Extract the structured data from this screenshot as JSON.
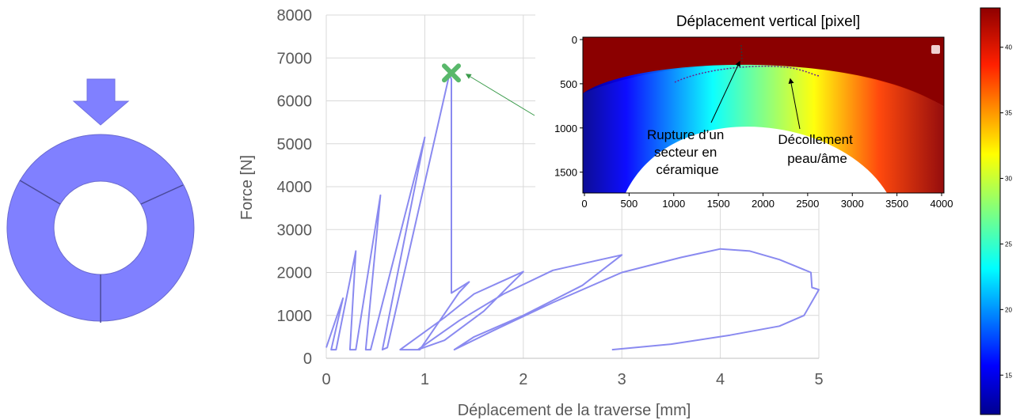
{
  "colors": {
    "ring": "#8080ff",
    "ring_border": "#5a5ab0",
    "curve": "#8a8af0",
    "grid": "#d9d9d9",
    "marker": "#59b86b",
    "arrow": "#3a9a4a"
  },
  "icons": {
    "load_arrow": "down-arrow-icon",
    "ring": "ring-section-icon",
    "failure_marker": "cross-marker-icon"
  },
  "chart_data": [
    {
      "type": "line",
      "title": "",
      "xlabel": "Déplacement de la traverse [mm]",
      "ylabel": "Force [N]",
      "xlim": [
        0,
        5
      ],
      "ylim": [
        0,
        8000
      ],
      "x_ticks": [
        0,
        1,
        2,
        3,
        4,
        5
      ],
      "y_ticks": [
        0,
        1000,
        2000,
        3000,
        4000,
        5000,
        6000,
        7000,
        8000
      ],
      "grid": true,
      "legend": "none",
      "failure_point": {
        "x": 1.27,
        "y": 6650
      },
      "series": [
        {
          "points": [
            [
              0,
              250
            ],
            [
              0.17,
              1400
            ],
            [
              0.05,
              200
            ],
            [
              0.1,
              200
            ],
            [
              0.3,
              2500
            ],
            [
              0.24,
              200
            ],
            [
              0.3,
              200
            ],
            [
              0.55,
              3800
            ],
            [
              0.4,
              200
            ],
            [
              0.45,
              200
            ],
            [
              1.0,
              5150
            ],
            [
              0.57,
              200
            ],
            [
              0.62,
              250
            ],
            [
              1.25,
              6620
            ],
            [
              1.27,
              6500
            ],
            [
              1.27,
              1520
            ],
            [
              1.45,
              1780
            ],
            [
              1.35,
              1540
            ],
            [
              0.95,
              200
            ],
            [
              0.75,
              200
            ],
            [
              1.2,
              950
            ],
            [
              1.5,
              1500
            ],
            [
              2.0,
              2020
            ],
            [
              1.6,
              1100
            ],
            [
              1.2,
              420
            ],
            [
              0.93,
              200
            ],
            [
              1.35,
              880
            ],
            [
              1.8,
              1500
            ],
            [
              2.3,
              2050
            ],
            [
              3.0,
              2410
            ],
            [
              2.6,
              1700
            ],
            [
              2.0,
              1000
            ],
            [
              1.5,
              500
            ],
            [
              1.3,
              200
            ],
            [
              1.7,
              650
            ],
            [
              2.3,
              1300
            ],
            [
              3.0,
              2000
            ],
            [
              3.6,
              2350
            ],
            [
              4.0,
              2550
            ],
            [
              4.3,
              2500
            ],
            [
              4.6,
              2300
            ],
            [
              4.92,
              2000
            ],
            [
              4.93,
              1650
            ],
            [
              5.0,
              1600
            ],
            [
              4.85,
              1000
            ],
            [
              4.6,
              750
            ],
            [
              4.1,
              540
            ],
            [
              3.5,
              330
            ],
            [
              2.9,
              200
            ]
          ]
        }
      ]
    },
    {
      "type": "heatmap",
      "title": "Déplacement vertical [pixel]",
      "xlabel": "",
      "ylabel": "",
      "xlim": [
        0,
        4000
      ],
      "ylim": [
        1700,
        0
      ],
      "x_ticks": [
        0,
        500,
        1000,
        1500,
        2000,
        2500,
        3000,
        3500,
        4000
      ],
      "y_ticks": [
        0,
        500,
        1000,
        1500
      ],
      "annotations": [
        "Rupture d’un secteur en céramique",
        "Décollement peau/âme"
      ],
      "colorbar": {
        "min": 12,
        "max": 43,
        "ticks": [
          15,
          20,
          25,
          30,
          35,
          40
        ]
      }
    }
  ]
}
